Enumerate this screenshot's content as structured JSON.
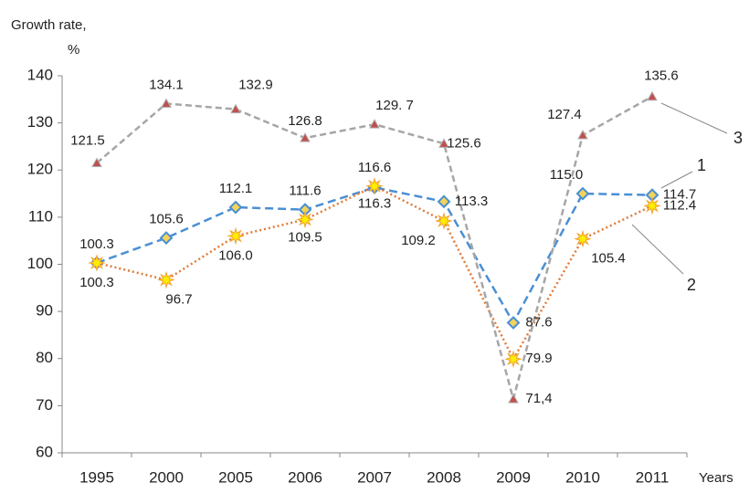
{
  "chart_data": {
    "type": "line",
    "y_label": [
      "Growth rate,",
      "%"
    ],
    "x_label": "Years",
    "categories": [
      "1995",
      "2000",
      "2005",
      "2006",
      "2007",
      "2008",
      "2009",
      "2010",
      "2011"
    ],
    "series": [
      {
        "name": "1",
        "color": "#4a8fd4",
        "values": [
          100.3,
          105.6,
          112.1,
          111.6,
          116.3,
          113.3,
          87.6,
          115.0,
          114.7
        ],
        "value_labels": [
          "100.3",
          "105.6",
          "112.1",
          "111.6",
          "116.3",
          "113.3",
          "87.6",
          "115.0",
          "114.7"
        ]
      },
      {
        "name": "2",
        "color": "#e07b39",
        "values": [
          100.3,
          96.7,
          106.0,
          109.5,
          116.6,
          109.2,
          79.9,
          105.4,
          112.4
        ],
        "value_labels": [
          "100.3",
          "96.7",
          "106.0",
          "109.5",
          "116.6",
          "109.2",
          "79.9",
          "105.4",
          "112.4"
        ]
      },
      {
        "name": "3",
        "color": "#a6a6a6",
        "values": [
          121.5,
          134.1,
          132.9,
          126.8,
          129.7,
          125.6,
          71.4,
          127.4,
          135.6
        ],
        "value_labels": [
          "121.5",
          "134.1",
          "132.9",
          "126.8",
          "129. 7",
          "125.6",
          "71,4",
          "127.4",
          "135.6"
        ]
      }
    ],
    "ylim": [
      60,
      140
    ],
    "yticks": [
      60,
      70,
      80,
      90,
      100,
      110,
      120,
      130,
      140
    ],
    "grid": false
  }
}
